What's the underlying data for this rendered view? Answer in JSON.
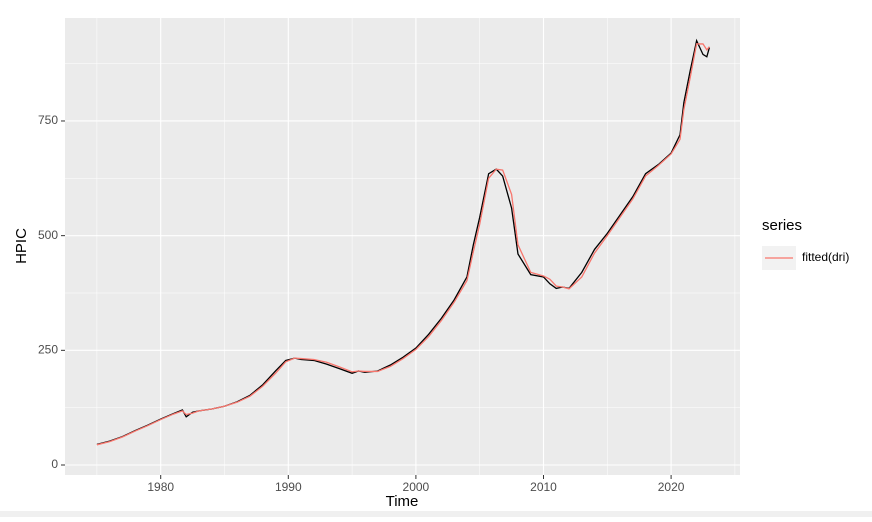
{
  "chart_data": {
    "type": "line",
    "x_label": "Time",
    "y_label": "HPIC",
    "legend_title": "series",
    "legend_position": "right",
    "x": [
      1975,
      1976,
      1977,
      1978,
      1979,
      1980,
      1981,
      1981.7,
      1982,
      1982.5,
      1983,
      1984,
      1985,
      1986,
      1987,
      1988,
      1989,
      1989.8,
      1990.5,
      1991,
      1992,
      1993,
      1994,
      1995,
      1995.5,
      1996,
      1997,
      1998,
      1999,
      2000,
      2001,
      2002,
      2003,
      2004,
      2004.5,
      2005,
      2005.7,
      2006.3,
      2006.8,
      2007.5,
      2008,
      2009,
      2010,
      2010.5,
      2011,
      2011.5,
      2012,
      2013,
      2014,
      2015,
      2016,
      2017,
      2018,
      2019,
      2020,
      2020.7,
      2021,
      2021.5,
      2022,
      2022.5,
      2022.8,
      2023
    ],
    "series": [
      {
        "color": "#000000",
        "values": [
          45,
          52,
          62,
          75,
          87,
          100,
          112,
          120,
          105,
          115,
          118,
          122,
          128,
          138,
          152,
          175,
          205,
          228,
          233,
          230,
          228,
          220,
          210,
          200,
          205,
          202,
          205,
          218,
          235,
          255,
          285,
          320,
          360,
          410,
          480,
          540,
          635,
          645,
          630,
          560,
          460,
          415,
          410,
          395,
          385,
          388,
          385,
          420,
          470,
          505,
          545,
          585,
          635,
          655,
          680,
          720,
          790,
          860,
          925,
          895,
          890,
          910
        ]
      },
      {
        "name": "fitted(dri)",
        "color": "#f8766d",
        "values": [
          44,
          51,
          61,
          74,
          86,
          99,
          111,
          118,
          110,
          113,
          118,
          122,
          128,
          137,
          150,
          172,
          200,
          225,
          233,
          232,
          230,
          224,
          214,
          203,
          205,
          204,
          204,
          215,
          232,
          252,
          280,
          315,
          355,
          402,
          465,
          525,
          625,
          645,
          643,
          590,
          480,
          420,
          412,
          405,
          390,
          388,
          384,
          410,
          462,
          500,
          540,
          580,
          630,
          653,
          678,
          710,
          775,
          845,
          918,
          918,
          905,
          912
        ]
      }
    ],
    "xlim": [
      1972.5,
      2025.4
    ],
    "ylim": [
      -21.8,
      974.5
    ],
    "xticks": [
      1980,
      1990,
      2000,
      2010,
      2020
    ],
    "yticks": [
      0,
      250,
      500,
      750
    ],
    "x_minor_ticks": [
      1975,
      1985,
      1995,
      2005,
      2015,
      2025
    ],
    "y_minor_ticks": [
      125,
      375,
      625,
      875
    ],
    "grid": true
  }
}
